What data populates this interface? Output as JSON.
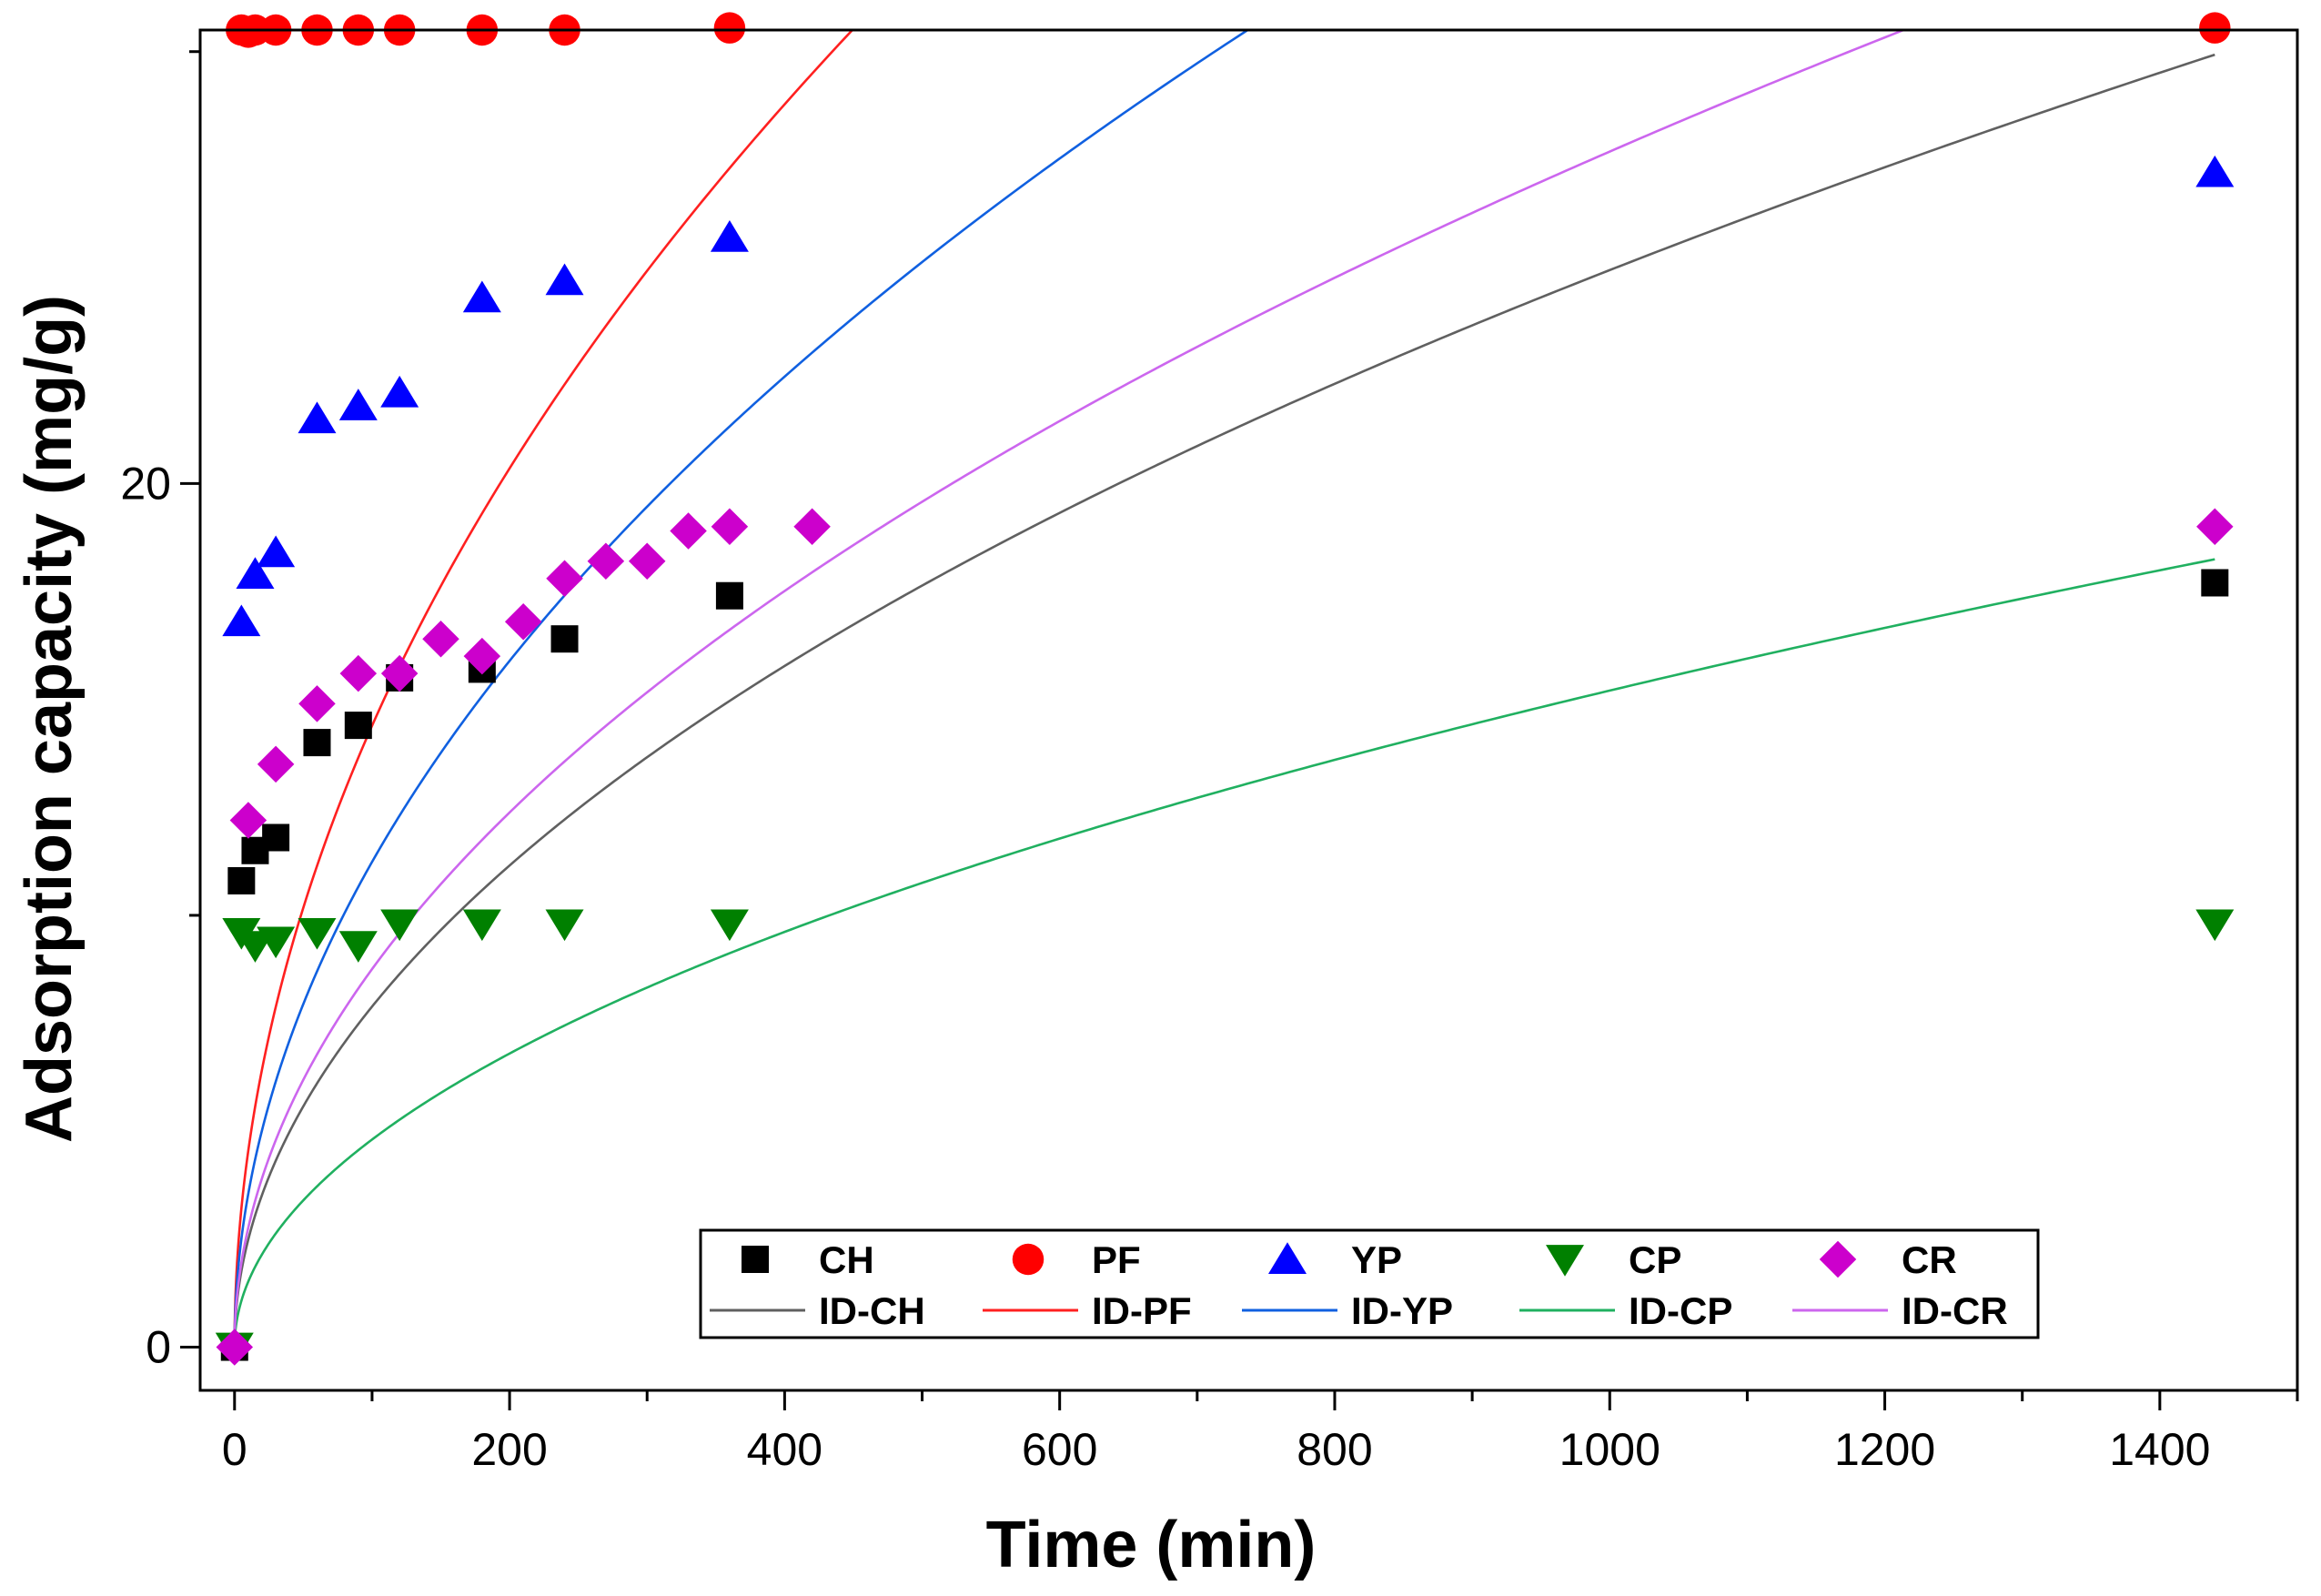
{
  "chart_data": {
    "type": "scatter",
    "title": "",
    "xlabel": "Time (min)",
    "ylabel": "Adsorption capacity (mg/g)",
    "xlim": [
      -25,
      1500
    ],
    "ylim": [
      -1,
      30.5
    ],
    "x_ticks": [
      0,
      200,
      400,
      600,
      800,
      1000,
      1200,
      1400
    ],
    "x_tick_labels": [
      "0",
      "200",
      "400",
      "600",
      "800",
      "1000",
      "1200",
      "1400"
    ],
    "y_ticks": [
      0,
      20
    ],
    "y_tick_labels": [
      "0",
      "20"
    ],
    "legend_position": "bottom-right",
    "series": [
      {
        "name": "CH",
        "kind": "points",
        "marker": "square",
        "color": "#000000",
        "points": [
          [
            0,
            0
          ],
          [
            5,
            10.8
          ],
          [
            15,
            11.5
          ],
          [
            30,
            11.8
          ],
          [
            60,
            14
          ],
          [
            90,
            14.4
          ],
          [
            120,
            15.5
          ],
          [
            180,
            15.7
          ],
          [
            240,
            16.4
          ],
          [
            360,
            17.4
          ],
          [
            1440,
            17.7
          ]
        ]
      },
      {
        "name": "PF",
        "kind": "points",
        "marker": "circle",
        "color": "#ff0000",
        "points": [
          [
            5,
            30.5
          ],
          [
            10,
            30.45
          ],
          [
            15,
            30.5
          ],
          [
            30,
            30.5
          ],
          [
            60,
            30.5
          ],
          [
            90,
            30.5
          ],
          [
            120,
            30.5
          ],
          [
            180,
            30.5
          ],
          [
            240,
            30.5
          ],
          [
            360,
            30.55
          ],
          [
            1440,
            30.55
          ]
        ]
      },
      {
        "name": "YP",
        "kind": "points",
        "marker": "triangle-up",
        "color": "#0000ff",
        "points": [
          [
            5,
            16.8
          ],
          [
            15,
            17.9
          ],
          [
            30,
            18.4
          ],
          [
            60,
            21.5
          ],
          [
            90,
            21.8
          ],
          [
            120,
            22.1
          ],
          [
            180,
            24.3
          ],
          [
            240,
            24.7
          ],
          [
            360,
            25.7
          ],
          [
            1440,
            27.2
          ]
        ]
      },
      {
        "name": "CP",
        "kind": "points",
        "marker": "triangle-down",
        "color": "#008000",
        "points": [
          [
            0,
            0
          ],
          [
            5,
            9.6
          ],
          [
            15,
            9.3
          ],
          [
            30,
            9.4
          ],
          [
            60,
            9.6
          ],
          [
            90,
            9.3
          ],
          [
            120,
            9.8
          ],
          [
            180,
            9.8
          ],
          [
            240,
            9.8
          ],
          [
            360,
            9.8
          ],
          [
            1440,
            9.8
          ]
        ]
      },
      {
        "name": "CR",
        "kind": "points",
        "marker": "diamond",
        "color": "#cc00cc",
        "points": [
          [
            0,
            0
          ],
          [
            10,
            12.2
          ],
          [
            30,
            13.5
          ],
          [
            60,
            14.9
          ],
          [
            90,
            15.6
          ],
          [
            120,
            15.6
          ],
          [
            150,
            16.4
          ],
          [
            180,
            16
          ],
          [
            210,
            16.8
          ],
          [
            240,
            17.8
          ],
          [
            270,
            18.2
          ],
          [
            300,
            18.2
          ],
          [
            330,
            18.9
          ],
          [
            360,
            19
          ],
          [
            420,
            19
          ],
          [
            1440,
            19
          ]
        ]
      },
      {
        "name": "ID-CH",
        "kind": "curve",
        "color": "#606060",
        "model": "q = k*t^0.5",
        "k": 0.7887,
        "x_range": [
          0,
          1440
        ]
      },
      {
        "name": "ID-PF",
        "kind": "curve",
        "color": "#ff2020",
        "model": "q = k*t^0.5",
        "k": 1.439,
        "x_range": [
          0,
          1440
        ]
      },
      {
        "name": "ID-YP",
        "kind": "curve",
        "color": "#1060e0",
        "model": "q = k*t^0.5",
        "k": 1.1237,
        "x_range": [
          0,
          1440
        ]
      },
      {
        "name": "ID-CP",
        "kind": "curve",
        "color": "#20b060",
        "model": "q = k*t^0.5",
        "k": 0.4808,
        "x_range": [
          0,
          1440
        ]
      },
      {
        "name": "ID-CR",
        "kind": "curve",
        "color": "#cc66ee",
        "model": "q = k*t^0.5",
        "k": 0.8755,
        "x_range": [
          0,
          1440
        ]
      }
    ]
  }
}
